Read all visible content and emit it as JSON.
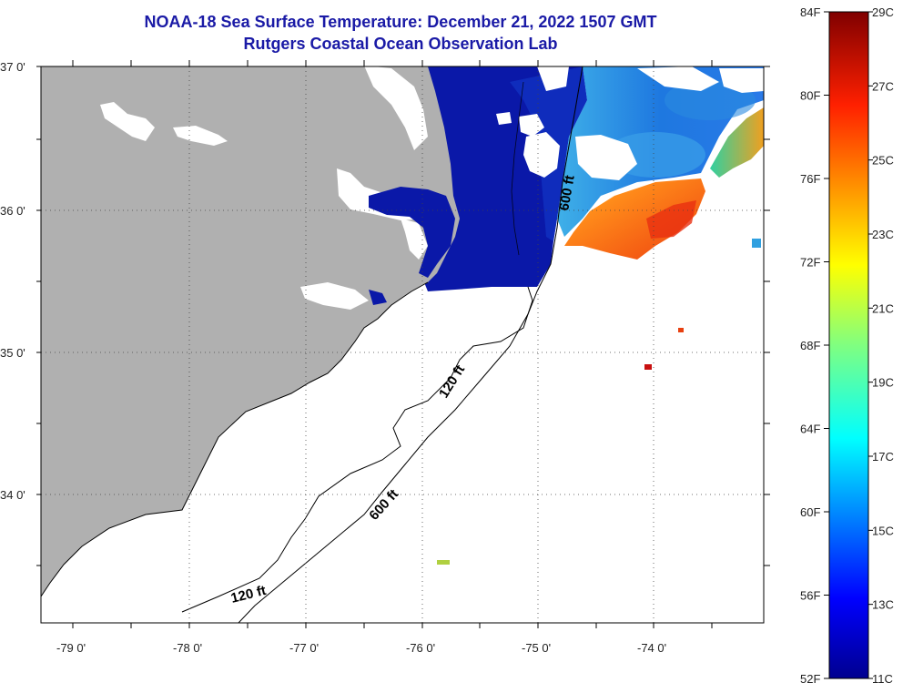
{
  "title": "NOAA-18 Sea Surface Temperature:  December 21, 2022 1507 GMT",
  "subtitle": "Rutgers Coastal Ocean Observation Lab",
  "lat_labels": [
    "37 0'",
    "36 0'",
    "35 0'",
    "34 0'"
  ],
  "lon_labels": [
    "-79 0'",
    "-78 0'",
    "-77 0'",
    "-76 0'",
    "-75 0'",
    "-74 0'"
  ],
  "contour_labels": {
    "c600_north": "600 ft",
    "c120_mid": "120 ft",
    "c600_mid": "600 ft",
    "c120_south": "120 ft"
  },
  "colorbar": {
    "fahrenheit": [
      "84F",
      "80F",
      "76F",
      "72F",
      "68F",
      "64F",
      "60F",
      "56F",
      "52F"
    ],
    "celsius": [
      "29C",
      "27C",
      "25C",
      "23C",
      "21C",
      "19C",
      "17C",
      "15C",
      "13C",
      "11C"
    ]
  },
  "colors": {
    "title": "#1a1aa6",
    "land": "#b0b0b0",
    "cold_water": "#0a14a0",
    "warm_water": "#ff6a1a",
    "cloud_nodata": "#ffffff"
  }
}
